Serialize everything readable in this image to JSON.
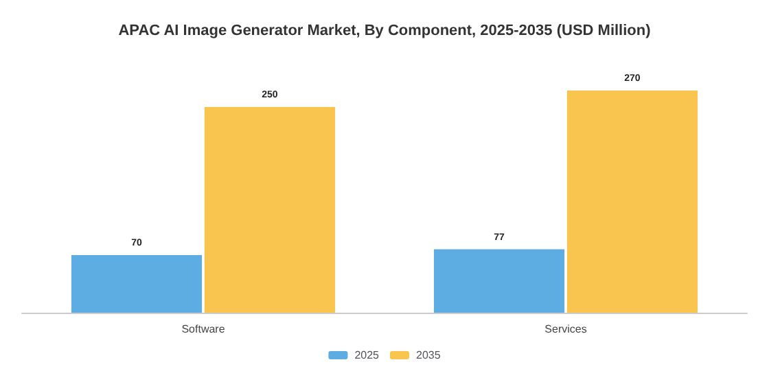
{
  "chart_data": {
    "type": "bar",
    "title": "APAC AI Image Generator Market, By Component, 2025-2035 (USD Million)",
    "categories": [
      "Software",
      "Services"
    ],
    "series": [
      {
        "name": "2025",
        "color": "#5dade2",
        "values": [
          70,
          77
        ]
      },
      {
        "name": "2035",
        "color": "#f9c54e",
        "values": [
          250,
          270
        ]
      }
    ],
    "data_labels": true,
    "legend": "bottom"
  }
}
